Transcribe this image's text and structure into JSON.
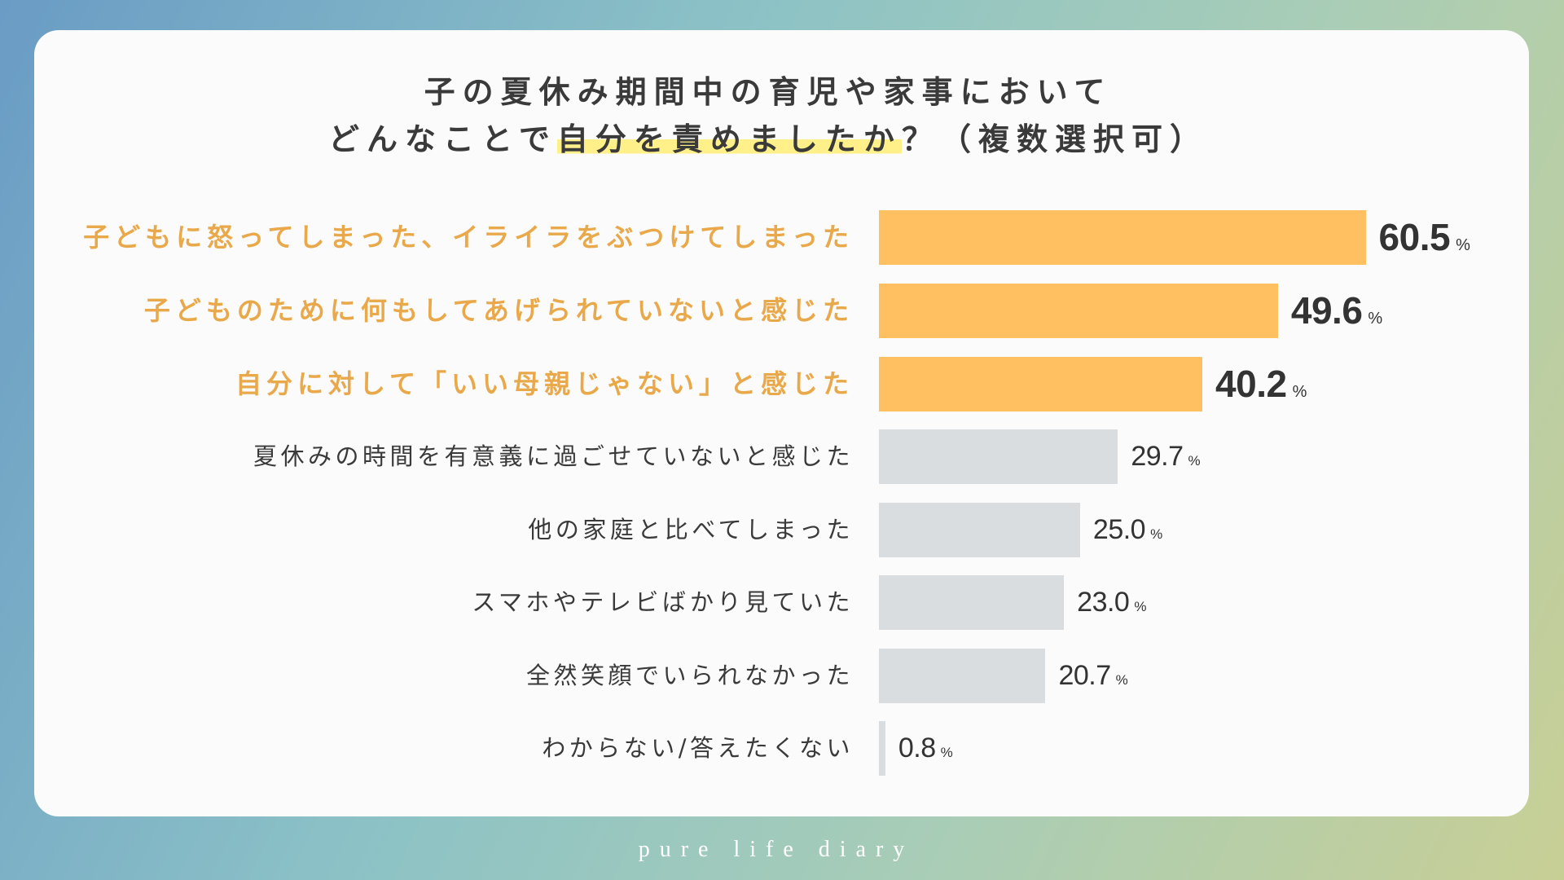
{
  "theme": {
    "background_gradient": [
      "#6a9cc5",
      "#8cc2c6",
      "#a9cdb6",
      "#c8cf95"
    ],
    "card_color": "#fbfbfb",
    "title_color": "#3a3a3a",
    "value_color": "#333333",
    "footer_color": "#ffffff"
  },
  "chart_data": {
    "type": "bar",
    "orientation": "horizontal",
    "title": {
      "line1": "子の夏休み期間中の育児や家事において",
      "line2_before": "どんなことで",
      "line2_highlight": "自分を責めましたか",
      "line2_after": "？（複数選択可）",
      "highlight_color": "#fff08a"
    },
    "categories": [
      "子どもに怒ってしまった、イライラをぶつけてしまった",
      "子どものために何もしてあげられていないと感じた",
      "自分に対して「いい母親じゃない」と感じた",
      "夏休みの時間を有意義に過ごせていないと感じた",
      "他の家庭と比べてしまった",
      "スマホやテレビばかり見ていた",
      "全然笑顔でいられなかった",
      "わからない/答えたくない"
    ],
    "values": [
      60.5,
      49.6,
      40.2,
      29.7,
      25.0,
      23.0,
      20.7,
      0.8
    ],
    "data_labels": [
      "60.5",
      "49.6",
      "40.2",
      "29.7",
      "25.0",
      "23.0",
      "20.7",
      "0.8"
    ],
    "unit": "%",
    "highlighted": [
      true,
      true,
      true,
      false,
      false,
      false,
      false,
      false
    ],
    "colors": {
      "highlight_bar": "#ffc061",
      "bar": "#d9dde0",
      "highlight_label": "#e9a94b",
      "label": "#3a3a3a"
    },
    "grid": false,
    "legend": "none"
  },
  "footer": {
    "brand": "pure life diary"
  }
}
